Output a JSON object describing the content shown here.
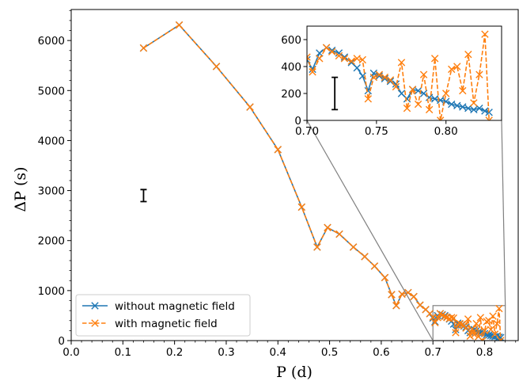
{
  "chart_data": [
    {
      "type": "line",
      "xlabel": "P (d)",
      "ylabel": "ΔP (s)",
      "xlim": [
        0.0,
        0.865
      ],
      "ylim": [
        0,
        6620
      ],
      "xticks": [
        0.0,
        0.1,
        0.2,
        0.3,
        0.4,
        0.5,
        0.6,
        0.7,
        0.8
      ],
      "xtick_labels": [
        "0.0",
        "0.1",
        "0.2",
        "0.3",
        "0.4",
        "0.5",
        "0.6",
        "0.7",
        "0.8"
      ],
      "yticks": [
        0,
        1000,
        2000,
        3000,
        4000,
        5000,
        6000
      ],
      "ytick_labels": [
        "0",
        "1000",
        "2000",
        "3000",
        "4000",
        "5000",
        "6000"
      ],
      "grid": false,
      "legend_position": "lower-left",
      "error_bar": {
        "x": 0.14,
        "y": 2900,
        "half_height": 120
      },
      "zoom_box": {
        "x": [
          0.7,
          0.84
        ],
        "y": [
          0,
          700
        ]
      },
      "series": [
        {
          "name": "without magnetic field",
          "color": "#1f77b4",
          "linestyle": "solid",
          "marker": "x",
          "x": [
            0.14,
            0.209,
            0.281,
            0.346,
            0.4,
            0.446,
            0.476,
            0.496,
            0.519,
            0.546,
            0.568,
            0.587,
            0.607,
            0.62,
            0.629,
            0.64,
            0.652,
            0.663,
            0.675,
            0.686,
            0.694,
            0.7,
            0.704,
            0.709,
            0.714,
            0.718,
            0.723,
            0.727,
            0.732,
            0.736,
            0.74,
            0.744,
            0.748,
            0.752,
            0.756,
            0.76,
            0.764,
            0.768,
            0.772,
            0.776,
            0.78,
            0.784,
            0.788,
            0.792,
            0.796,
            0.8,
            0.804,
            0.808,
            0.812,
            0.816,
            0.82,
            0.824,
            0.828,
            0.831
          ],
          "y": [
            5850,
            6310,
            5480,
            4670,
            3820,
            2670,
            1870,
            2260,
            2130,
            1870,
            1680,
            1490,
            1260,
            920,
            700,
            930,
            960,
            880,
            710,
            620,
            540,
            450,
            380,
            500,
            540,
            520,
            500,
            470,
            430,
            390,
            330,
            220,
            350,
            330,
            310,
            290,
            270,
            200,
            160,
            230,
            220,
            200,
            170,
            160,
            150,
            140,
            120,
            110,
            100,
            90,
            80,
            90,
            70,
            60
          ]
        },
        {
          "name": "with magnetic field",
          "color": "#ff7f0e",
          "linestyle": "dashed",
          "marker": "x",
          "x": [
            0.14,
            0.209,
            0.281,
            0.346,
            0.4,
            0.446,
            0.476,
            0.496,
            0.519,
            0.546,
            0.568,
            0.587,
            0.607,
            0.62,
            0.629,
            0.64,
            0.652,
            0.663,
            0.675,
            0.686,
            0.694,
            0.7,
            0.704,
            0.709,
            0.714,
            0.718,
            0.723,
            0.727,
            0.732,
            0.736,
            0.74,
            0.744,
            0.748,
            0.752,
            0.756,
            0.76,
            0.764,
            0.768,
            0.772,
            0.776,
            0.78,
            0.784,
            0.788,
            0.792,
            0.796,
            0.8,
            0.804,
            0.808,
            0.812,
            0.816,
            0.82,
            0.824,
            0.828,
            0.831
          ],
          "y": [
            5850,
            6310,
            5480,
            4670,
            3820,
            2670,
            1870,
            2260,
            2130,
            1870,
            1680,
            1490,
            1260,
            920,
            700,
            930,
            960,
            880,
            710,
            620,
            540,
            470,
            360,
            460,
            540,
            510,
            480,
            460,
            440,
            460,
            450,
            160,
            320,
            340,
            320,
            300,
            250,
            430,
            90,
            230,
            120,
            340,
            80,
            460,
            0,
            200,
            380,
            400,
            220,
            490,
            130,
            340,
            640,
            0
          ]
        }
      ]
    },
    {
      "type": "line",
      "xlim": [
        0.7,
        0.84
      ],
      "ylim": [
        0,
        700
      ],
      "xticks": [
        0.7,
        0.75,
        0.8
      ],
      "xtick_labels": [
        "0.70",
        "0.75",
        "0.80"
      ],
      "yticks": [
        0,
        200,
        400,
        600
      ],
      "ytick_labels": [
        "0",
        "200",
        "400",
        "600"
      ],
      "grid": false,
      "error_bar": {
        "x": 0.72,
        "y": 200,
        "half_height": 120
      }
    }
  ]
}
